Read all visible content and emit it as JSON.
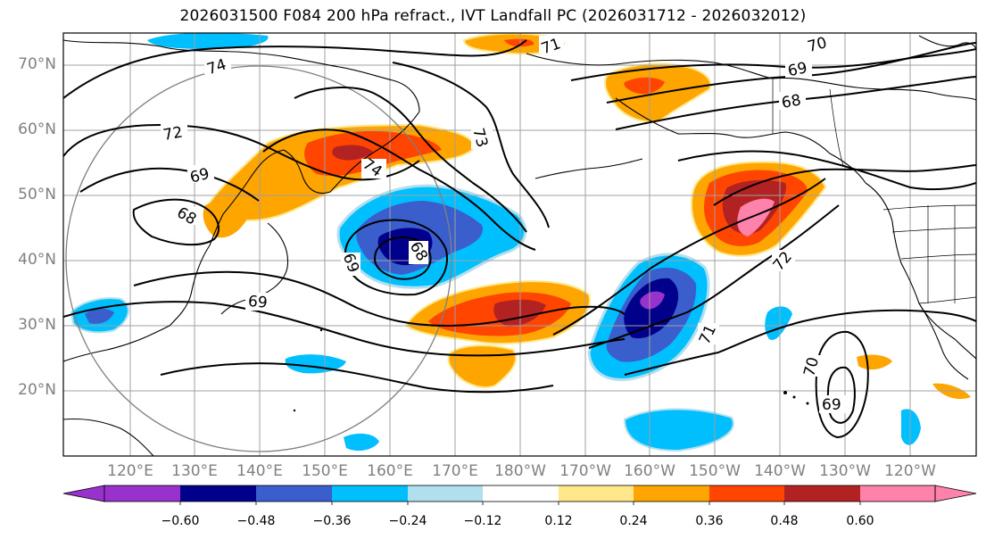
{
  "title": "2026031500 F084 200 hPa refract., IVT Landfall PC (2026031712 - 2026032012)",
  "lat_labels": [
    "70°N",
    "60°N",
    "50°N",
    "40°N",
    "30°N",
    "20°N"
  ],
  "lon_labels": [
    "120°E",
    "130°E",
    "140°E",
    "150°E",
    "160°E",
    "170°E",
    "180°W",
    "170°W",
    "160°W",
    "150°W",
    "140°W",
    "130°W",
    "120°W"
  ],
  "contour_labels": [
    "74",
    "72",
    "69",
    "68",
    "73",
    "74",
    "71",
    "70",
    "69",
    "68",
    "69",
    "68",
    "69",
    "72",
    "71",
    "70",
    "69"
  ],
  "colorbar": {
    "ticks": [
      "−0.60",
      "−0.48",
      "−0.36",
      "−0.24",
      "−0.12",
      "0.12",
      "0.24",
      "0.36",
      "0.48",
      "0.60"
    ],
    "colors": [
      "#9932CC",
      "#00008B",
      "#3A5FCD",
      "#00BFFF",
      "#B2DFEE",
      "#FFFFFF",
      "#FFE78A",
      "#FFA500",
      "#FF4500",
      "#B22222",
      "#FF82AB"
    ]
  },
  "colors": {
    "frame": "#000000",
    "grid": "#a0a0a0",
    "coast": "#000000",
    "circle": "#808080"
  }
}
